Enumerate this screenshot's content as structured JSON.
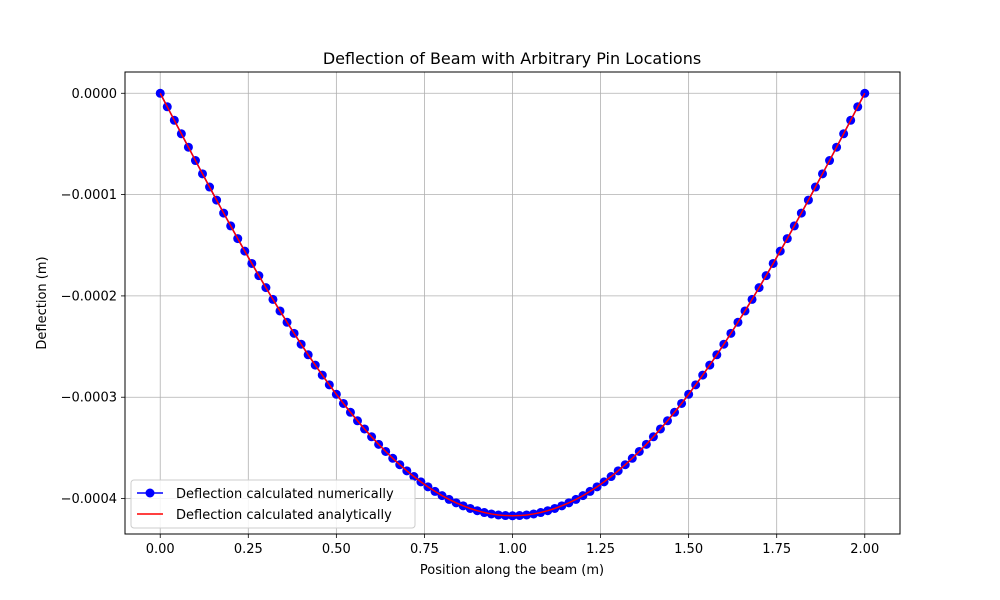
{
  "chart_data": {
    "type": "line",
    "title": "Deflection of Beam with Arbitrary Pin Locations",
    "xlabel": "Position along the beam (m)",
    "ylabel": "Deflection (m)",
    "xlim": [
      -0.1,
      2.1
    ],
    "ylim": [
      -0.000435,
      2.1e-05
    ],
    "xticks": [
      0.0,
      0.25,
      0.5,
      0.75,
      1.0,
      1.25,
      1.5,
      1.75,
      2.0
    ],
    "xtick_labels": [
      "0.00",
      "0.25",
      "0.50",
      "0.75",
      "1.00",
      "1.25",
      "1.50",
      "1.75",
      "2.00"
    ],
    "yticks": [
      0.0,
      -0.0001,
      -0.0002,
      -0.0003,
      -0.0004
    ],
    "ytick_labels": [
      "0.0000",
      "−0.0001",
      "−0.0002",
      "−0.0003",
      "−0.0004"
    ],
    "grid": true,
    "legend_position": "lower-left",
    "x_domain": [
      0.0,
      2.0
    ],
    "max_deflection": -0.000417,
    "series": [
      {
        "name": "Deflection calculated numerically",
        "color": "#0000ff",
        "marker": "circle",
        "marker_fill": "#0000ff",
        "points": 101
      },
      {
        "name": "Deflection calculated analytically",
        "color": "#ff0000",
        "marker": "none",
        "points": 101
      }
    ]
  }
}
